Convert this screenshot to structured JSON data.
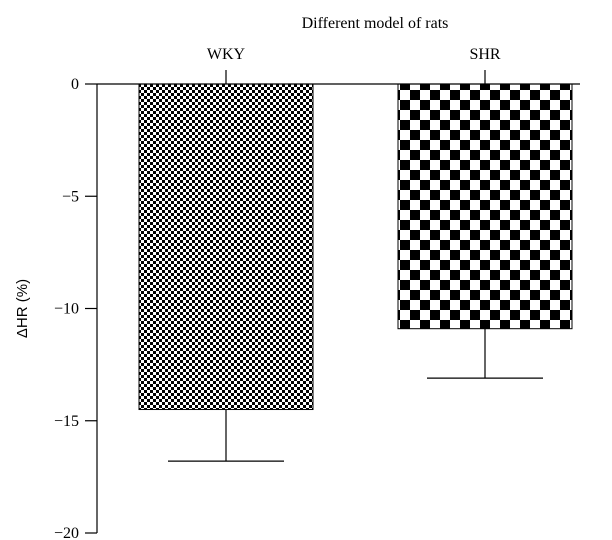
{
  "chart_data": {
    "type": "bar",
    "title": "Different model of rats",
    "xlabel": "",
    "ylabel": "ΔHR (%)",
    "x_axis_position": "top",
    "categories": [
      "WKY",
      "SHR"
    ],
    "values": [
      -14.5,
      -10.9
    ],
    "error_bars": [
      2.3,
      2.2
    ],
    "ylim": [
      -20,
      0
    ],
    "yticks": [
      0,
      -5,
      -10,
      -15,
      -20
    ],
    "ytick_labels": [
      "0",
      "−5",
      "−10",
      "−15",
      "−20"
    ],
    "grid": false,
    "legend": "none",
    "fill_patterns": [
      "fine-checkerboard",
      "coarse-checkerboard"
    ],
    "colors": {
      "bar_dark": "#000000",
      "bar_light": "#ffffff",
      "axis": "#000000"
    }
  }
}
